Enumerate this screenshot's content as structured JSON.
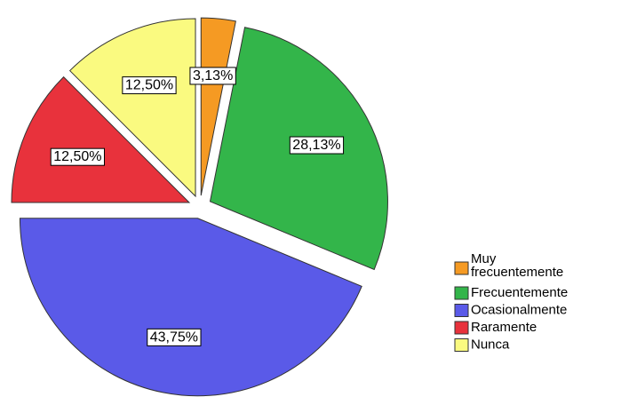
{
  "chart_data": {
    "type": "pie",
    "categories": [
      "Muy frecuentemente",
      "Frecuentemente",
      "Ocasionalmente",
      "Raramente",
      "Nunca"
    ],
    "values": [
      3.13,
      28.13,
      43.75,
      12.5,
      12.5
    ],
    "value_labels": [
      "3,13%",
      "28,13%",
      "43,75%",
      "12,50%",
      "12,50%"
    ],
    "colors": [
      "#f59a23",
      "#33b54a",
      "#5a5ae8",
      "#e8323c",
      "#fafa80"
    ],
    "legend": "right"
  }
}
